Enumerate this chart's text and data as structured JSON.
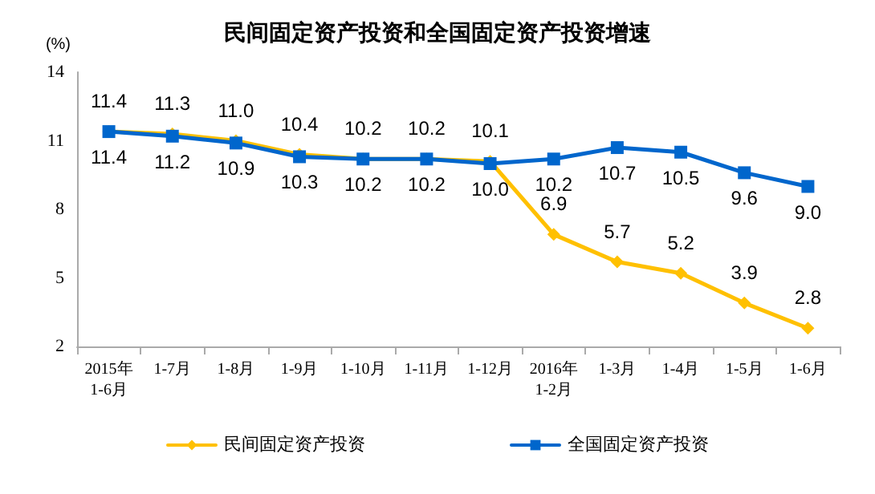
{
  "chart_data": {
    "type": "line",
    "title": "民间固定资产投资和全国固定资产投资增速",
    "ylabel": "(%)",
    "categories": [
      "2015年\n1-6月",
      "1-7月",
      "1-8月",
      "1-9月",
      "1-10月",
      "1-11月",
      "1-12月",
      "2016年\n1-2月",
      "1-3月",
      "1-4月",
      "1-5月",
      "1-6月"
    ],
    "series": [
      {
        "name": "民间固定资产投资",
        "color": "#ffc000",
        "marker": "diamond",
        "values": [
          11.4,
          11.3,
          11.0,
          10.4,
          10.2,
          10.2,
          10.1,
          6.9,
          5.7,
          5.2,
          3.9,
          2.8
        ],
        "value_labels": [
          "11.4",
          "11.3",
          "11.0",
          "10.4",
          "10.2",
          "10.2",
          "10.1",
          "6.9",
          "5.7",
          "5.2",
          "3.9",
          "2.8"
        ]
      },
      {
        "name": "全国固定资产投资",
        "color": "#0066cc",
        "marker": "square",
        "values": [
          11.4,
          11.2,
          10.9,
          10.3,
          10.2,
          10.2,
          10.0,
          10.2,
          10.7,
          10.5,
          9.6,
          9.0
        ],
        "value_labels": [
          "11.4",
          "11.2",
          "10.9",
          "10.3",
          "10.2",
          "10.2",
          "10.0",
          "10.2",
          "10.7",
          "10.5",
          "9.6",
          "9.0"
        ]
      }
    ],
    "ylim": [
      2,
      14
    ],
    "yticks": [
      2,
      5,
      8,
      11,
      14
    ],
    "grid": false,
    "legend": "bottom"
  }
}
